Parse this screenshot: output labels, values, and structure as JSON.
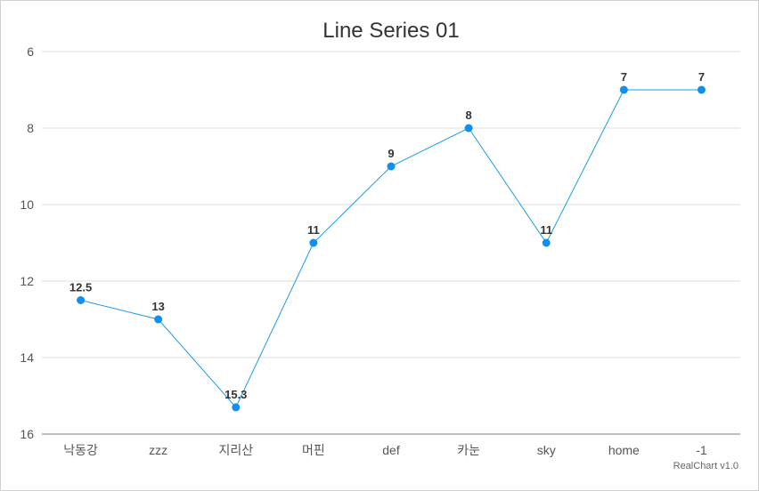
{
  "chart_data": {
    "type": "line",
    "title": "Line Series 01",
    "categories": [
      "낙동강",
      "zzz",
      "지리산",
      "머핀",
      "def",
      "카눈",
      "sky",
      "home",
      "-1"
    ],
    "series": [
      {
        "values": [
          12.5,
          13,
          15.3,
          11,
          9,
          8,
          11,
          7,
          7
        ]
      }
    ],
    "ylim": [
      6,
      16
    ],
    "y_reversed": true,
    "yticks": [
      6,
      8,
      10,
      12,
      14,
      16
    ],
    "grid": true,
    "data_labels": true,
    "colors": {
      "line": "#1a9be6",
      "point": "#0f8ff0",
      "grid": "#dddddd",
      "axis": "#aaaaaa"
    }
  },
  "credit": "RealChart v1.0"
}
